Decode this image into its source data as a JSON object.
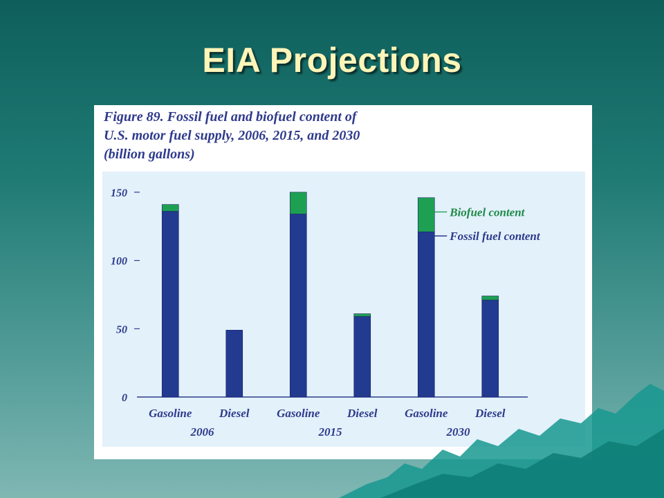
{
  "slide": {
    "title": "EIA Projections",
    "background_color": "#1f7a74",
    "title_color": "#fff5b8"
  },
  "chart_data": {
    "type": "bar",
    "stacked": true,
    "title": "Figure 89. Fossil fuel and biofuel content of U.S. motor fuel supply, 2006, 2015, and 2030 (billion gallons)",
    "title_lines": [
      "Figure 89. Fossil fuel and biofuel content of",
      "U.S. motor fuel supply, 2006, 2015, and 2030",
      "(billion gallons)"
    ],
    "categories": [
      "Gasoline",
      "Diesel",
      "Gasoline",
      "Diesel",
      "Gasoline",
      "Diesel"
    ],
    "groups": [
      "2006",
      "2015",
      "2030"
    ],
    "series": [
      {
        "name": "Fossil fuel content",
        "color": "#223a8f",
        "values": [
          136,
          49,
          134,
          59,
          121,
          71
        ]
      },
      {
        "name": "Biofuel content",
        "color": "#1ea052",
        "values": [
          5,
          0,
          16,
          2,
          25,
          3
        ]
      }
    ],
    "yticks": [
      0,
      50,
      100,
      150
    ],
    "ylim": [
      0,
      155
    ],
    "legend": "right, pointing to 2030 Gasoline bar",
    "grid": false,
    "plot_background": "#e3f1fb"
  }
}
